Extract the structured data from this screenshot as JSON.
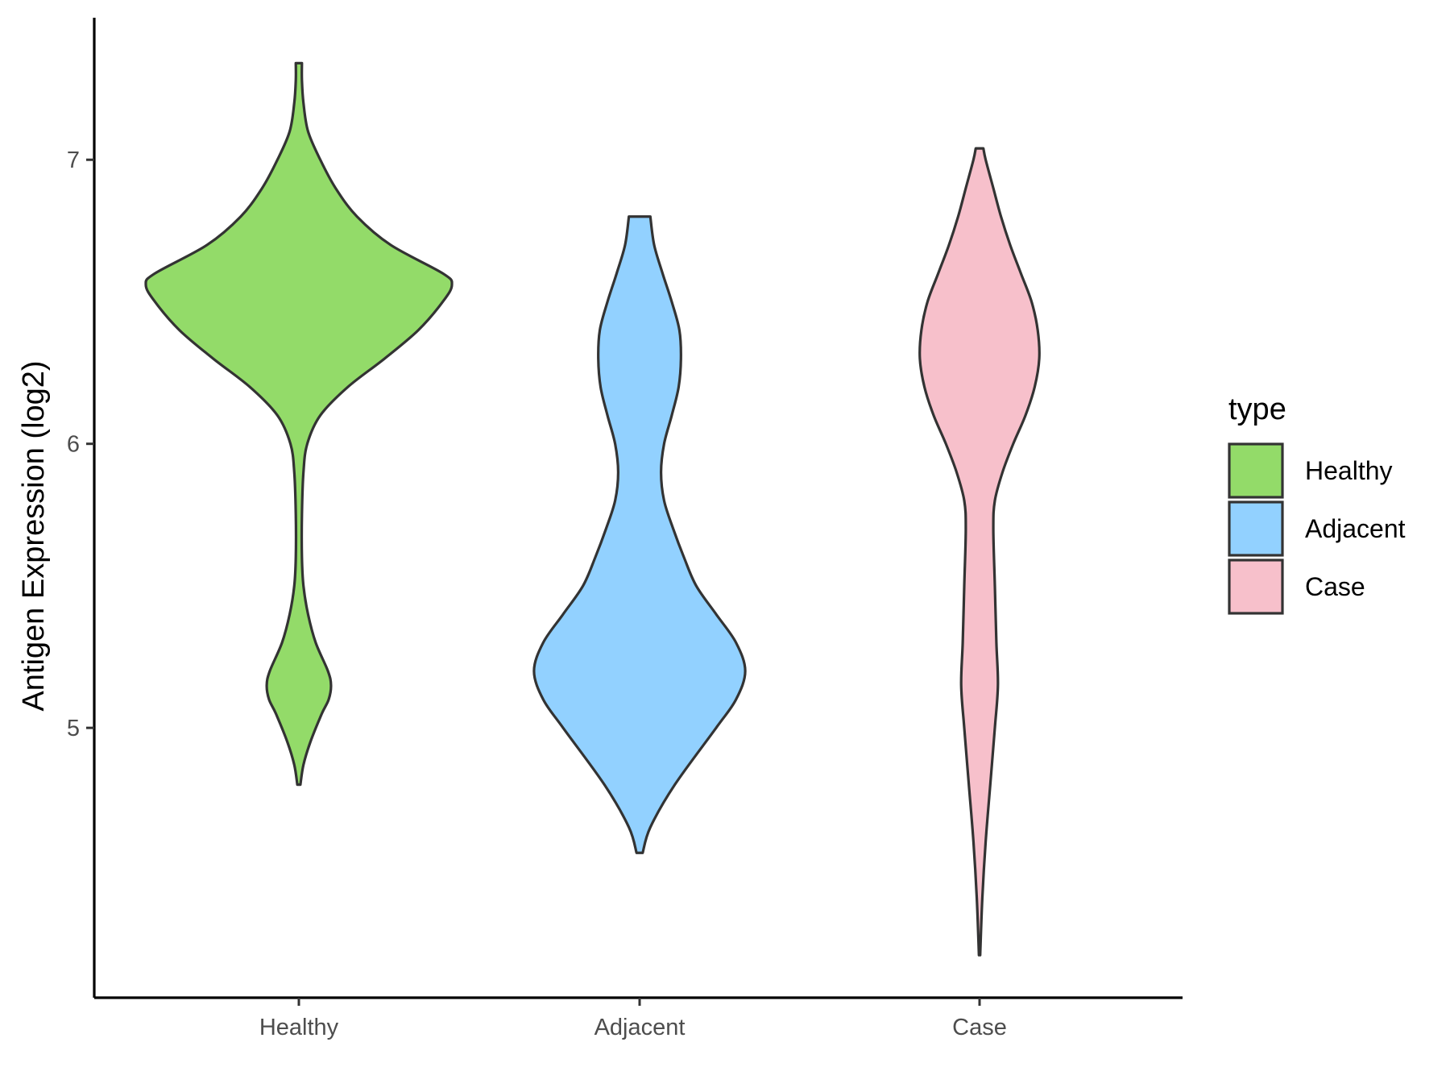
{
  "chart_data": {
    "type": "violin",
    "title": "",
    "xlabel": "",
    "ylabel": "Antigen Expression (log2)",
    "y_ticks": [
      5,
      6,
      7
    ],
    "y_tick_labels": [
      "5",
      "6",
      "7"
    ],
    "ylim": [
      4.05,
      7.5
    ],
    "categories": [
      "Healthy",
      "Adjacent",
      "Case"
    ],
    "legend": {
      "title": "type",
      "position": "right",
      "entries": [
        {
          "label": "Healthy",
          "color": "#93DB69"
        },
        {
          "label": "Adjacent",
          "color": "#92D1FF"
        },
        {
          "label": "Case",
          "color": "#F7C0CB"
        }
      ]
    },
    "series": [
      {
        "name": "Healthy",
        "color": "#93DB69",
        "min": 4.8,
        "max": 7.34,
        "density": [
          [
            4.8,
            0.01
          ],
          [
            4.87,
            0.03
          ],
          [
            4.95,
            0.075
          ],
          [
            5.05,
            0.15
          ],
          [
            5.1,
            0.195
          ],
          [
            5.15,
            0.21
          ],
          [
            5.2,
            0.19
          ],
          [
            5.3,
            0.11
          ],
          [
            5.4,
            0.06
          ],
          [
            5.5,
            0.03
          ],
          [
            5.6,
            0.02
          ],
          [
            5.75,
            0.02
          ],
          [
            5.9,
            0.03
          ],
          [
            6.0,
            0.055
          ],
          [
            6.1,
            0.14
          ],
          [
            6.2,
            0.32
          ],
          [
            6.3,
            0.56
          ],
          [
            6.4,
            0.78
          ],
          [
            6.5,
            0.94
          ],
          [
            6.56,
            1.0
          ],
          [
            6.6,
            0.94
          ],
          [
            6.7,
            0.6
          ],
          [
            6.8,
            0.38
          ],
          [
            6.9,
            0.24
          ],
          [
            7.0,
            0.14
          ],
          [
            7.1,
            0.06
          ],
          [
            7.2,
            0.03
          ],
          [
            7.28,
            0.02
          ],
          [
            7.34,
            0.02
          ]
        ]
      },
      {
        "name": "Adjacent",
        "color": "#92D1FF",
        "min": 4.56,
        "max": 6.8,
        "density": [
          [
            4.56,
            0.02
          ],
          [
            4.65,
            0.07
          ],
          [
            4.8,
            0.23
          ],
          [
            5.0,
            0.5
          ],
          [
            5.1,
            0.63
          ],
          [
            5.2,
            0.69
          ],
          [
            5.3,
            0.63
          ],
          [
            5.4,
            0.5
          ],
          [
            5.5,
            0.37
          ],
          [
            5.6,
            0.29
          ],
          [
            5.7,
            0.22
          ],
          [
            5.8,
            0.16
          ],
          [
            5.9,
            0.14
          ],
          [
            6.0,
            0.16
          ],
          [
            6.1,
            0.21
          ],
          [
            6.2,
            0.255
          ],
          [
            6.3,
            0.27
          ],
          [
            6.4,
            0.26
          ],
          [
            6.5,
            0.21
          ],
          [
            6.6,
            0.15
          ],
          [
            6.7,
            0.095
          ],
          [
            6.8,
            0.07
          ]
        ]
      },
      {
        "name": "Case",
        "color": "#F7C0CB",
        "min": 4.2,
        "max": 7.04,
        "density": [
          [
            4.2,
            0.004
          ],
          [
            4.4,
            0.018
          ],
          [
            4.6,
            0.04
          ],
          [
            4.8,
            0.07
          ],
          [
            5.0,
            0.1
          ],
          [
            5.15,
            0.12
          ],
          [
            5.3,
            0.11
          ],
          [
            5.5,
            0.1
          ],
          [
            5.7,
            0.09
          ],
          [
            5.8,
            0.1
          ],
          [
            5.9,
            0.15
          ],
          [
            6.0,
            0.22
          ],
          [
            6.1,
            0.3
          ],
          [
            6.2,
            0.36
          ],
          [
            6.3,
            0.39
          ],
          [
            6.4,
            0.38
          ],
          [
            6.5,
            0.34
          ],
          [
            6.6,
            0.27
          ],
          [
            6.7,
            0.2
          ],
          [
            6.8,
            0.14
          ],
          [
            6.9,
            0.09
          ],
          [
            7.0,
            0.04
          ],
          [
            7.04,
            0.025
          ]
        ]
      }
    ]
  }
}
